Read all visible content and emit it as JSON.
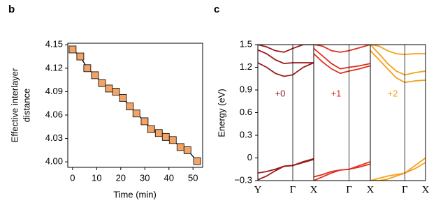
{
  "chart_data": [
    {
      "type": "line",
      "label": "b",
      "xlabel": "Time (min)",
      "ylabel": [
        "Effective interlayer",
        "distance"
      ],
      "x": [
        0,
        3.2,
        6.1,
        9.3,
        12.2,
        15.1,
        18,
        20.9,
        23.8,
        26.5,
        29.9,
        32.6,
        35.8,
        38.7,
        41.6,
        44.8,
        47.7,
        51.7
      ],
      "values": [
        4.144,
        4.135,
        4.12,
        4.111,
        4.101,
        4.094,
        4.09,
        4.082,
        4.071,
        4.062,
        4.052,
        4.042,
        4.037,
        4.032,
        4.028,
        4.019,
        4.015,
        4.001
      ],
      "color": "#f2a366",
      "line_color": "#000000",
      "xlim": [
        -2,
        54
      ],
      "xticks": [
        0,
        10,
        20,
        30,
        40,
        50
      ],
      "ylim": [
        3.993,
        4.152
      ],
      "yticks": [
        {
          "value": 4.0,
          "label": "4.00"
        },
        4.03,
        4.06,
        4.09,
        4.12,
        4.15
      ]
    },
    {
      "type": "bands",
      "label": "c",
      "ylabel": "Energy (eV)",
      "x": [
        0,
        0.25,
        0.5,
        0.75,
        1,
        1.3,
        1.6
      ],
      "xlim": [
        0,
        1.6
      ],
      "ylim": [
        -0.3,
        1.5
      ],
      "yticks": [
        {
          "value": -0.3,
          "label": "−0.3"
        },
        0,
        0.3,
        0.6,
        0.9,
        1.2,
        1.5
      ],
      "panels": [
        {
          "annotation": "+0",
          "color": "#9b1b1b",
          "xticks": [
            {
              "value": 0,
              "label": "Y"
            },
            {
              "value": 1,
              "label": "Γ"
            },
            {
              "value": 1.6,
              "label": "X"
            }
          ],
          "series": [
            {
              "values": [
                -0.2,
                -0.18,
                -0.15,
                -0.11,
                -0.1,
                -0.05,
                -0.01
              ]
            },
            {
              "values": [
                -0.29,
                -0.24,
                -0.17,
                -0.11,
                -0.1,
                -0.06,
                -0.02
              ]
            },
            {
              "values": [
                1.43,
                1.38,
                1.3,
                1.25,
                1.26,
                1.26,
                1.26
              ]
            },
            {
              "values": [
                1.26,
                1.2,
                1.12,
                1.08,
                1.1,
                1.2,
                1.26
              ]
            },
            {
              "values": [
                1.5,
                1.47,
                1.42,
                1.4,
                1.45,
                1.5,
                1.5
              ]
            }
          ]
        },
        {
          "annotation": "+1",
          "color": "#e0301e",
          "xticks": [
            {
              "value": 1,
              "label": "Γ"
            },
            {
              "value": 1.6,
              "label": "X"
            }
          ],
          "series": [
            {
              "values": [
                -0.25,
                -0.22,
                -0.18,
                -0.16,
                -0.15,
                -0.1,
                -0.05
              ]
            },
            {
              "values": [
                -0.3,
                -0.25,
                -0.2,
                -0.16,
                -0.15,
                -0.12,
                -0.08
              ]
            },
            {
              "values": [
                1.45,
                1.35,
                1.25,
                1.18,
                1.2,
                1.22,
                1.25
              ]
            },
            {
              "values": [
                1.38,
                1.27,
                1.18,
                1.12,
                1.15,
                1.18,
                1.22
              ]
            },
            {
              "values": [
                1.5,
                1.48,
                1.42,
                1.4,
                1.42,
                1.46,
                1.5
              ]
            }
          ]
        },
        {
          "annotation": "+2",
          "color": "#f5a01a",
          "xticks": [
            {
              "value": 1,
              "label": "Γ"
            },
            {
              "value": 1.6,
              "label": "X"
            }
          ],
          "series": [
            {
              "values": [
                -0.3,
                -0.27,
                -0.24,
                -0.22,
                -0.2,
                -0.1,
                0.0
              ]
            },
            {
              "values": [
                -0.3,
                -0.3,
                -0.28,
                -0.24,
                -0.2,
                -0.14,
                -0.06
              ]
            },
            {
              "values": [
                1.5,
                1.38,
                1.25,
                1.15,
                1.1,
                1.13,
                1.15
              ]
            },
            {
              "values": [
                1.42,
                1.3,
                1.18,
                1.06,
                1.0,
                1.02,
                1.03
              ]
            },
            {
              "values": [
                1.5,
                1.48,
                1.42,
                1.38,
                1.37,
                1.38,
                1.38
              ]
            }
          ]
        }
      ]
    }
  ]
}
